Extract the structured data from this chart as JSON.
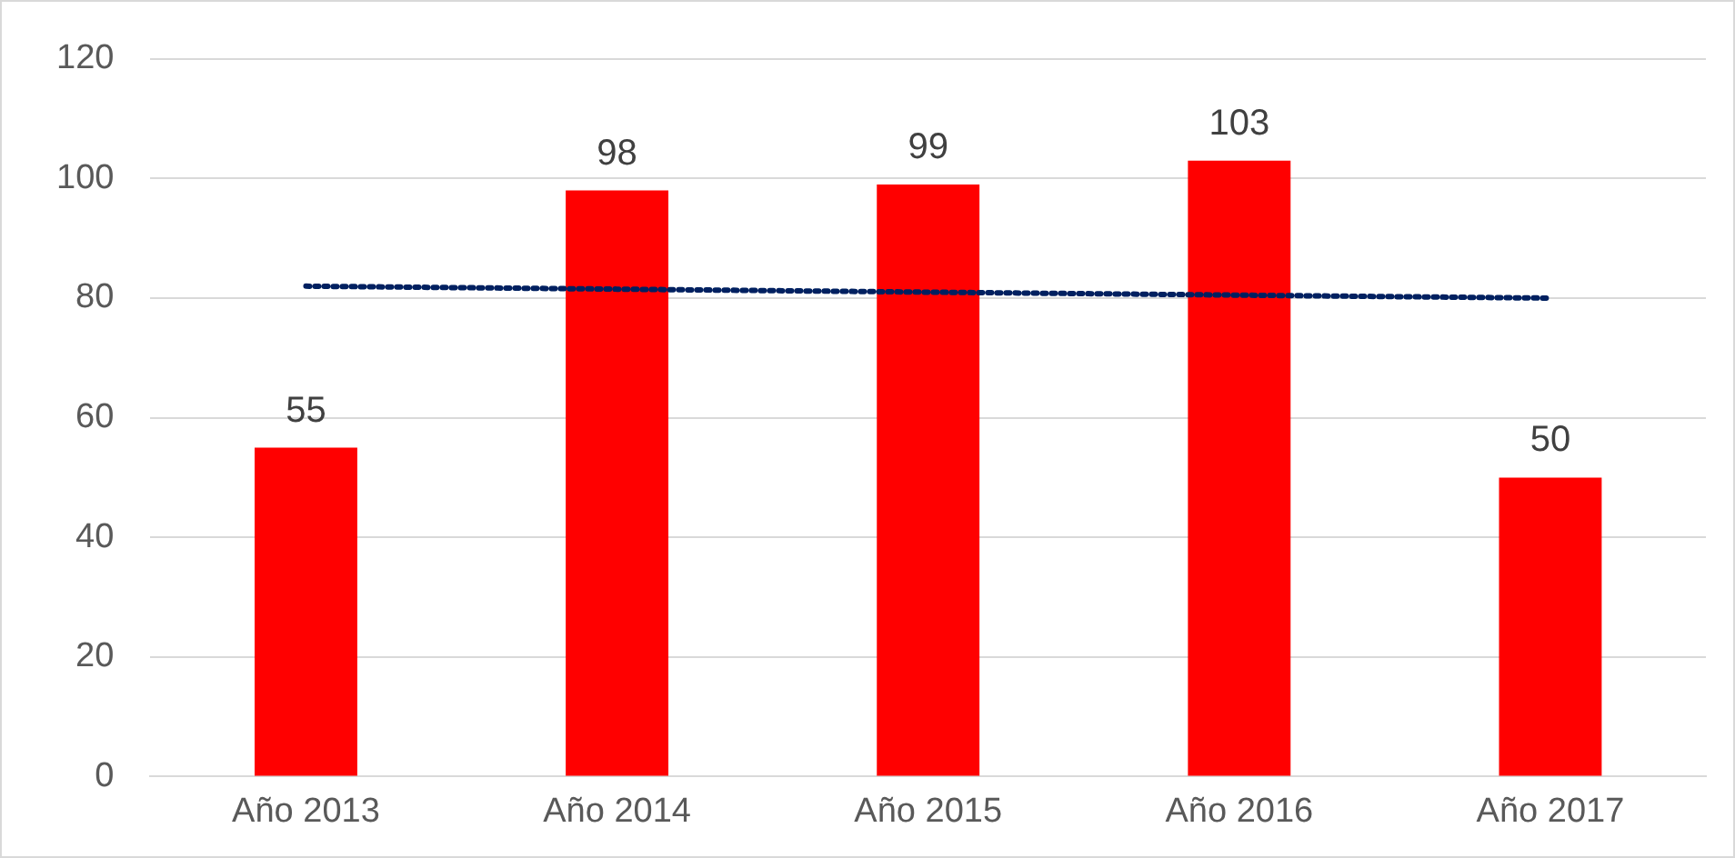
{
  "chart_data": {
    "type": "bar",
    "categories": [
      "Año 2013",
      "Año 2014",
      "Año 2015",
      "Año 2016",
      "Año 2017"
    ],
    "series": [
      {
        "color": "#ff0000",
        "values": [
          55,
          98,
          99,
          103,
          50
        ],
        "value_labels": [
          "55",
          "98",
          "99",
          "103",
          "50"
        ]
      },
      {
        "type": "line",
        "color": "#002060",
        "values": [
          82,
          81.5,
          81,
          80.5,
          80
        ],
        "line_style": "dotted",
        "marker": "none"
      }
    ],
    "ylim": [
      0,
      120
    ],
    "yticks": [
      0,
      20,
      40,
      60,
      80,
      100,
      120
    ],
    "grid": "y",
    "legend": false
  }
}
